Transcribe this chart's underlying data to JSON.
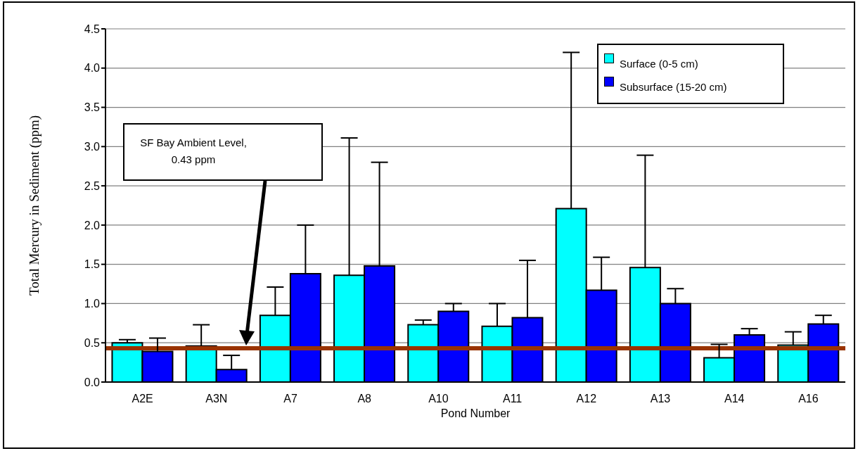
{
  "chart_data": {
    "type": "bar",
    "xlabel": "Pond Number",
    "ylabel": "Total Mercury in Sediment (ppm)",
    "categories": [
      "A2E",
      "A3N",
      "A7",
      "A8",
      "A10",
      "A11",
      "A12",
      "A13",
      "A14",
      "A16"
    ],
    "series": [
      {
        "name": "Surface (0-5 cm)",
        "color": "#00ffff",
        "values": [
          0.5,
          0.46,
          0.85,
          1.36,
          0.73,
          0.71,
          2.21,
          1.46,
          0.31,
          0.47
        ],
        "errors": [
          [
            0.5,
            0.54
          ],
          [
            0.46,
            0.73
          ],
          [
            0.85,
            1.21
          ],
          [
            1.36,
            3.11
          ],
          [
            0.73,
            0.79
          ],
          [
            0.71,
            1.0
          ],
          [
            2.21,
            4.2
          ],
          [
            1.46,
            2.89
          ],
          [
            0.31,
            0.48
          ],
          [
            0.47,
            0.64
          ]
        ]
      },
      {
        "name": "Subsurface (15-20 cm)",
        "color": "#0000ff",
        "values": [
          0.39,
          0.16,
          1.38,
          1.48,
          0.9,
          0.82,
          1.17,
          1.0,
          0.6,
          0.74
        ],
        "errors": [
          [
            0.39,
            0.56
          ],
          [
            0.16,
            0.34
          ],
          [
            1.38,
            2.0
          ],
          [
            1.48,
            2.8
          ],
          [
            0.9,
            1.0
          ],
          [
            0.82,
            1.55
          ],
          [
            1.17,
            1.59
          ],
          [
            1.0,
            1.19
          ],
          [
            0.6,
            0.68
          ],
          [
            0.74,
            0.85
          ]
        ]
      }
    ],
    "ylim": [
      0,
      4.5
    ],
    "yticks": [
      {
        "value": 0,
        "label": "0.0"
      },
      {
        "value": 0.5,
        "label": "0.5"
      },
      {
        "value": 1,
        "label": "1.0"
      },
      {
        "value": 1.5,
        "label": "1.5"
      },
      {
        "value": 2,
        "label": "2.0"
      },
      {
        "value": 2.5,
        "label": "2.5"
      },
      {
        "value": 3,
        "label": "3.0"
      },
      {
        "value": 3.5,
        "label": "3.5"
      },
      {
        "value": 4,
        "label": "4.0"
      },
      {
        "value": 4.5,
        "label": "4.5"
      }
    ],
    "ref_lines": [
      {
        "axis": "y",
        "value": 0.43,
        "color": "#993300"
      }
    ],
    "annotations": [
      "SF Bay Ambient Level, 0.43 ppm"
    ],
    "grid": "y",
    "legend": "top right"
  }
}
